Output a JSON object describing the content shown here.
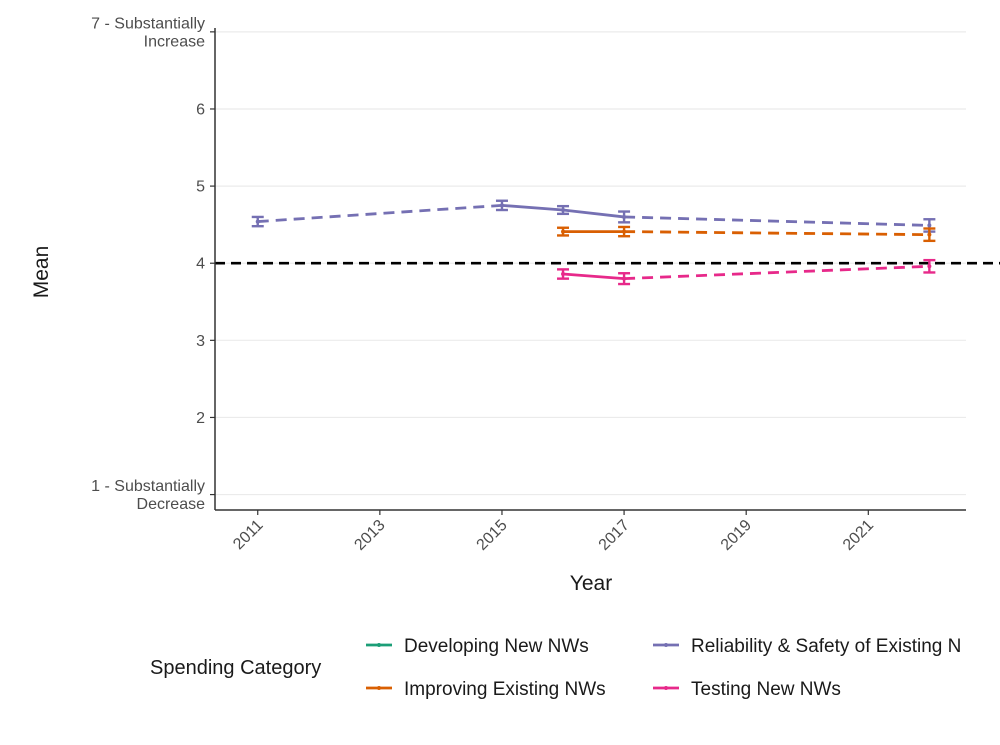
{
  "chart_data": {
    "type": "line",
    "title": "",
    "xlabel": "Year",
    "ylabel": "Mean",
    "xlim": [
      2010.3,
      2022.6
    ],
    "ylim": [
      0.8,
      7.05
    ],
    "x_ticks": [
      2011,
      2013,
      2015,
      2017,
      2019,
      2021
    ],
    "y_ticks": [
      {
        "value": 7,
        "lines": [
          "7 - Substantially",
          "Increase"
        ]
      },
      {
        "value": 6,
        "lines": [
          "6"
        ]
      },
      {
        "value": 5,
        "lines": [
          "5"
        ]
      },
      {
        "value": 4,
        "lines": [
          "4"
        ]
      },
      {
        "value": 3,
        "lines": [
          "3"
        ]
      },
      {
        "value": 2,
        "lines": [
          "2"
        ]
      },
      {
        "value": 1,
        "lines": [
          "1 - Substantially",
          "Decrease"
        ]
      }
    ],
    "grid": true,
    "reference_line": {
      "y": 4,
      "style": "dashed",
      "color": "#000000"
    },
    "legend": {
      "title": "Spending Category",
      "position": "bottom",
      "entries": [
        {
          "name": "Developing New NWs",
          "color": "#1b9e77"
        },
        {
          "name": "Reliability & Safety of Existing N",
          "color": "#7570b3"
        },
        {
          "name": "Improving Existing NWs",
          "color": "#d95f02"
        },
        {
          "name": "Testing New NWs",
          "color": "#e7298a"
        }
      ]
    },
    "series": [
      {
        "name": "Developing New NWs",
        "color": "#1b9e77",
        "points": [],
        "segments": []
      },
      {
        "name": "Reliability & Safety of Existing NWs",
        "color": "#7570b3",
        "points": [
          {
            "x": 2011,
            "y": 4.54,
            "err": 0.06
          },
          {
            "x": 2015,
            "y": 4.75,
            "err": 0.06
          },
          {
            "x": 2016,
            "y": 4.69,
            "err": 0.05
          },
          {
            "x": 2017,
            "y": 4.6,
            "err": 0.07
          },
          {
            "x": 2022,
            "y": 4.49,
            "err": 0.08
          }
        ],
        "segments": [
          {
            "from": 2011,
            "to": 2015,
            "style": "dashed"
          },
          {
            "from": 2015,
            "to": 2016,
            "style": "solid"
          },
          {
            "from": 2016,
            "to": 2017,
            "style": "solid"
          },
          {
            "from": 2017,
            "to": 2022,
            "style": "dashed"
          }
        ]
      },
      {
        "name": "Improving Existing NWs",
        "color": "#d95f02",
        "points": [
          {
            "x": 2016,
            "y": 4.41,
            "err": 0.05
          },
          {
            "x": 2017,
            "y": 4.41,
            "err": 0.06
          },
          {
            "x": 2022,
            "y": 4.37,
            "err": 0.08
          }
        ],
        "segments": [
          {
            "from": 2016,
            "to": 2017,
            "style": "solid"
          },
          {
            "from": 2017,
            "to": 2022,
            "style": "dashed"
          }
        ]
      },
      {
        "name": "Testing New NWs",
        "color": "#e7298a",
        "points": [
          {
            "x": 2016,
            "y": 3.86,
            "err": 0.06
          },
          {
            "x": 2017,
            "y": 3.8,
            "err": 0.07
          },
          {
            "x": 2022,
            "y": 3.96,
            "err": 0.08
          }
        ],
        "segments": [
          {
            "from": 2016,
            "to": 2017,
            "style": "solid"
          },
          {
            "from": 2017,
            "to": 2022,
            "style": "dashed"
          }
        ]
      }
    ]
  }
}
